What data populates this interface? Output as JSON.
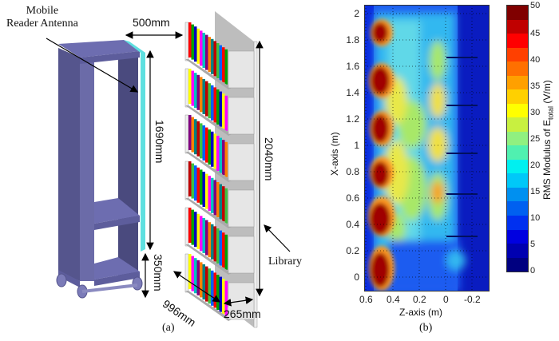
{
  "panel_a": {
    "caption": "(a)",
    "labels": {
      "antenna": [
        "Mobile",
        "Reader Antenna"
      ],
      "width_top": "500mm",
      "antenna_height": "1690mm",
      "base_height": "350mm",
      "library_height": "2040mm",
      "library_label": "Library",
      "library_length": "996mm",
      "library_depth": "265mm"
    },
    "colors": {
      "cart": "#6b6ba8",
      "cart_dark": "#4a4a80",
      "antenna": "#5ee0e0",
      "shelf": "#d8d8d8"
    }
  },
  "panel_b": {
    "caption": "(b)"
  },
  "chart_data": {
    "type": "heatmap",
    "title": "",
    "xlabel": "Z-axis (m)",
    "ylabel": "X-axis (m)",
    "x_ticks": [
      "0.6",
      "0.4",
      "0.2",
      "0",
      "-0.2"
    ],
    "y_ticks": [
      "0",
      "0.2",
      "0.4",
      "0.6",
      "0.8",
      "1",
      "1.2",
      "1.4",
      "1.6",
      "1.8",
      "2"
    ],
    "xlim": [
      0.6,
      -0.35
    ],
    "ylim": [
      -0.07,
      2.13
    ],
    "grid": true,
    "colorbar": {
      "label": "RMS Modulus of E_total (V/m)",
      "label_main": "RMS Modulus of E",
      "label_sub": "total",
      "label_unit": "(V/m)",
      "range": [
        0,
        50
      ],
      "ticks": [
        "0",
        "5",
        "10",
        "15",
        "20",
        "25",
        "30",
        "35",
        "40",
        "45",
        "50"
      ],
      "levels": 15
    },
    "hotspots_near_z_0.5": [
      {
        "x": 1.95,
        "value": 50
      },
      {
        "x": 1.68,
        "value": 50
      },
      {
        "x": 1.4,
        "value": 50
      },
      {
        "x": 1.15,
        "value": 50
      },
      {
        "x": 0.82,
        "value": 50
      },
      {
        "x": 0.55,
        "value": 50
      }
    ],
    "secondary_peaks_near_z_0.1": [
      {
        "x": 1.45,
        "value": 32
      },
      {
        "x": 1.18,
        "value": 35
      },
      {
        "x": 0.82,
        "value": 40
      }
    ],
    "shelf_lines_x": [
      0.38,
      0.7,
      1.04,
      1.38,
      1.72
    ]
  }
}
